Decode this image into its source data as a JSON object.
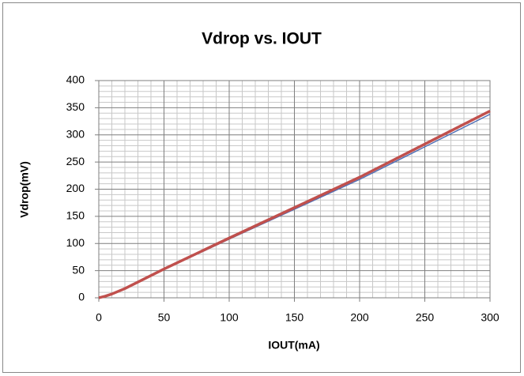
{
  "chart_data": {
    "type": "line",
    "title": "Vdrop vs. IOUT",
    "x_label": "IOUT(mA)",
    "y_label": "Vdrop(mV)",
    "x": [
      0,
      5,
      10,
      20,
      50,
      100,
      150,
      200,
      250,
      300
    ],
    "series": [
      {
        "color": "#4f6fb5",
        "width": 1.5,
        "values": [
          0,
          2,
          6,
          16,
          52,
          108,
          163,
          218,
          278,
          338
        ]
      },
      {
        "color": "#c0504d",
        "width": 3.5,
        "values": [
          0,
          3,
          7,
          17,
          53,
          110,
          166,
          222,
          283,
          344
        ]
      }
    ],
    "xlim": [
      0,
      300
    ],
    "xticks": [
      0,
      50,
      100,
      150,
      200,
      250,
      300
    ],
    "ylim": [
      0,
      400
    ],
    "yticks": [
      0,
      50,
      100,
      150,
      200,
      250,
      300,
      350,
      400
    ],
    "grid": true,
    "minor_grid": true
  }
}
